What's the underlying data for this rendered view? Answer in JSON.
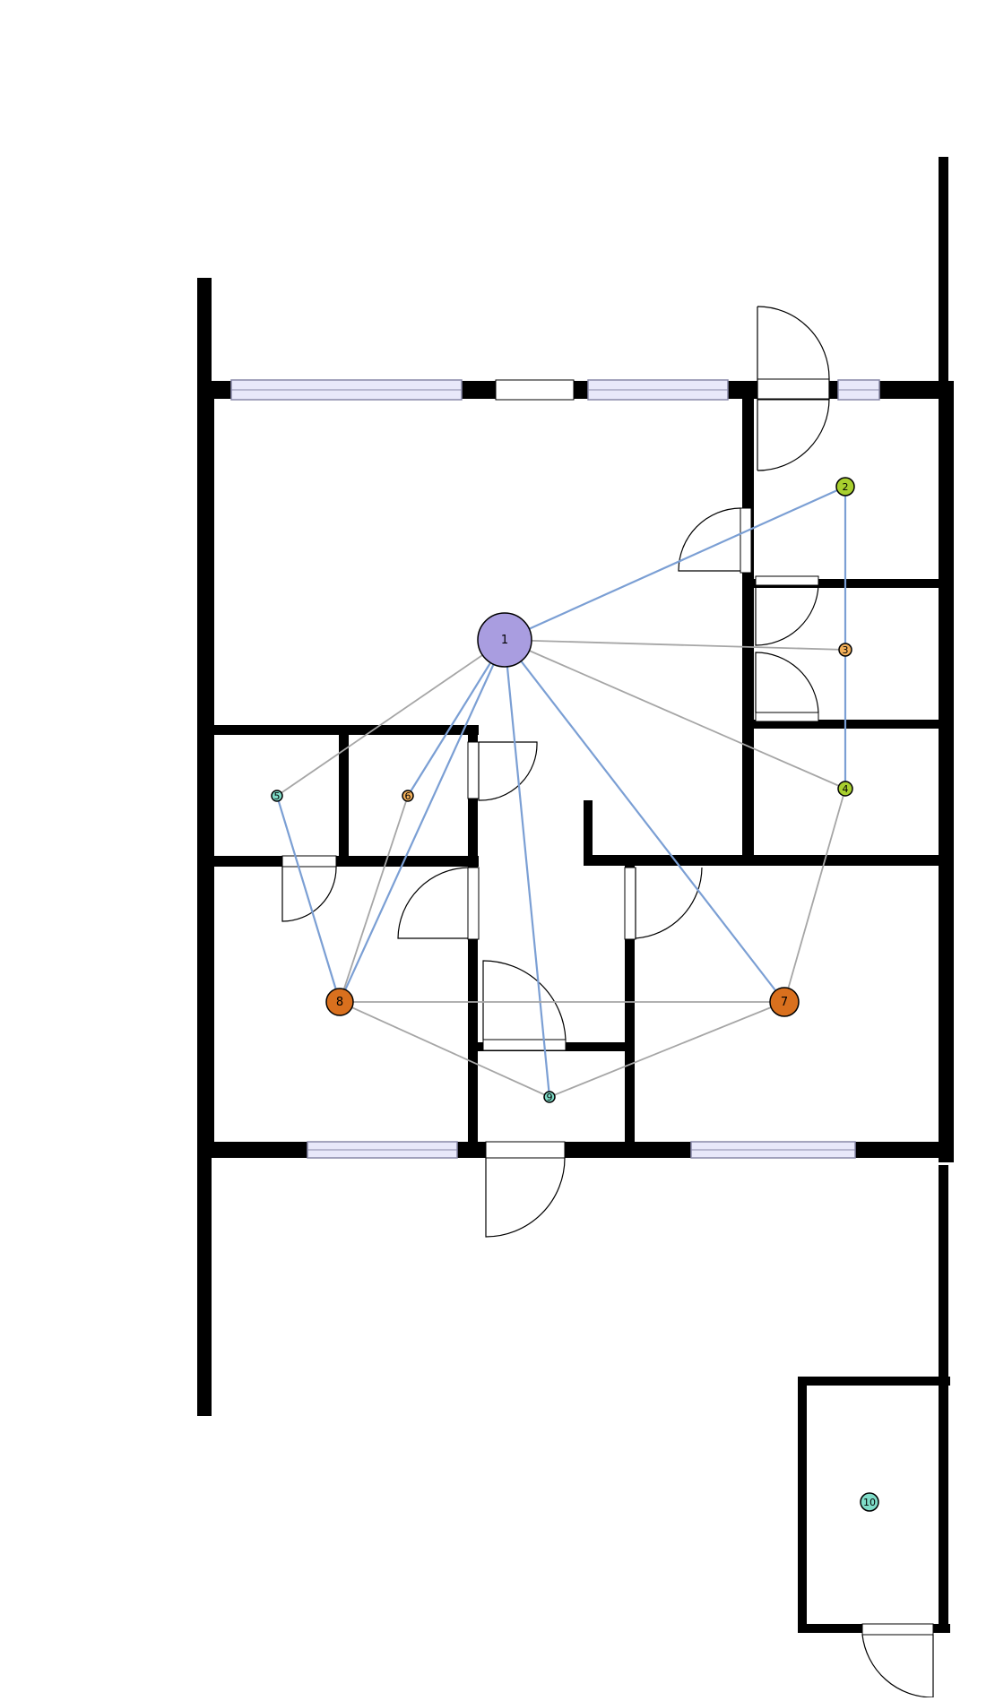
{
  "colors": {
    "wall": "#000000",
    "window_fill": "#e8e8fa",
    "window_stroke": "#8888a8",
    "edge_blue": "#7b9fd4",
    "edge_gray": "#a6a6a6",
    "background": "#ffffff"
  },
  "nodes": [
    {
      "id": "n1",
      "label": "1",
      "color": "#a99de0"
    },
    {
      "id": "n2",
      "label": "2",
      "color": "#a8cf2e"
    },
    {
      "id": "n3",
      "label": "3",
      "color": "#f3b05a"
    },
    {
      "id": "n4",
      "label": "4",
      "color": "#a8cf2e"
    },
    {
      "id": "n5",
      "label": "5",
      "color": "#7fdcc8"
    },
    {
      "id": "n6",
      "label": "6",
      "color": "#f3b05a"
    },
    {
      "id": "n7",
      "label": "7",
      "color": "#d9701e"
    },
    {
      "id": "n8",
      "label": "8",
      "color": "#d9701e"
    },
    {
      "id": "n9",
      "label": "9",
      "color": "#7fdcc8"
    },
    {
      "id": "n10",
      "label": "10",
      "color": "#7fdcc8"
    }
  ],
  "edges": [
    {
      "from": "1",
      "to": "2",
      "kind": "blue"
    },
    {
      "from": "1",
      "to": "3",
      "kind": "gray"
    },
    {
      "from": "1",
      "to": "4",
      "kind": "gray"
    },
    {
      "from": "1",
      "to": "5",
      "kind": "gray"
    },
    {
      "from": "1",
      "to": "6",
      "kind": "blue"
    },
    {
      "from": "1",
      "to": "7",
      "kind": "blue"
    },
    {
      "from": "1",
      "to": "8",
      "kind": "blue"
    },
    {
      "from": "1",
      "to": "9",
      "kind": "blue"
    },
    {
      "from": "2",
      "to": "4",
      "kind": "blue"
    },
    {
      "from": "4",
      "to": "7",
      "kind": "gray"
    },
    {
      "from": "5",
      "to": "8",
      "kind": "blue"
    },
    {
      "from": "6",
      "to": "8",
      "kind": "gray"
    },
    {
      "from": "8",
      "to": "7",
      "kind": "gray"
    },
    {
      "from": "8",
      "to": "9",
      "kind": "gray"
    },
    {
      "from": "9",
      "to": "7",
      "kind": "gray"
    }
  ]
}
